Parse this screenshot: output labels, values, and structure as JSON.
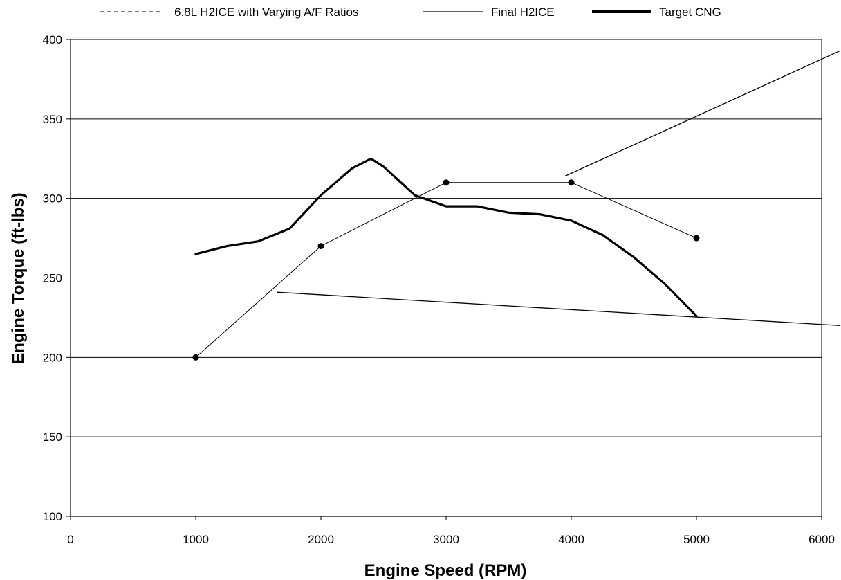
{
  "chart_data": {
    "type": "line",
    "title": "",
    "xlabel": "Engine Speed (RPM)",
    "ylabel": "Engine Torque (ft-lbs)",
    "xlim": [
      0,
      6000
    ],
    "ylim": [
      100,
      400
    ],
    "xticks": [
      0,
      1000,
      2000,
      3000,
      4000,
      5000,
      6000
    ],
    "yticks": [
      100,
      150,
      200,
      250,
      300,
      350,
      400
    ],
    "grid": "horizontal",
    "legend_position": "top",
    "legend": [
      "6.8L H2ICE with Varying A/F Ratios",
      "Final H2ICE",
      "Target CNG"
    ],
    "series": [
      {
        "name": "Final H2ICE",
        "style": "thin-line-with-markers",
        "x": [
          1000,
          2000,
          3000,
          4000,
          5000
        ],
        "y": [
          200,
          270,
          310,
          310,
          275
        ]
      },
      {
        "name": "Target CNG",
        "style": "thick-line",
        "x": [
          1000,
          1250,
          1500,
          1750,
          2000,
          2250,
          2400,
          2500,
          2750,
          3000,
          3250,
          3500,
          3750,
          4000,
          4250,
          4500,
          4750,
          5000
        ],
        "y": [
          265,
          270,
          273,
          281,
          302,
          319,
          325,
          320,
          302,
          295,
          295,
          291,
          290,
          286,
          277,
          263,
          246,
          226
        ]
      },
      {
        "name": "6.8L H2ICE with Varying A/F Ratios",
        "style": "dashed",
        "x": [],
        "y": []
      }
    ],
    "annotation_lines": [
      {
        "x": [
          3950,
          6150
        ],
        "y": [
          314,
          393
        ]
      },
      {
        "x": [
          1650,
          6150
        ],
        "y": [
          241,
          220
        ]
      }
    ],
    "colors": {
      "lines": "#000000",
      "grid": "#000000",
      "background": "#ffffff"
    }
  }
}
